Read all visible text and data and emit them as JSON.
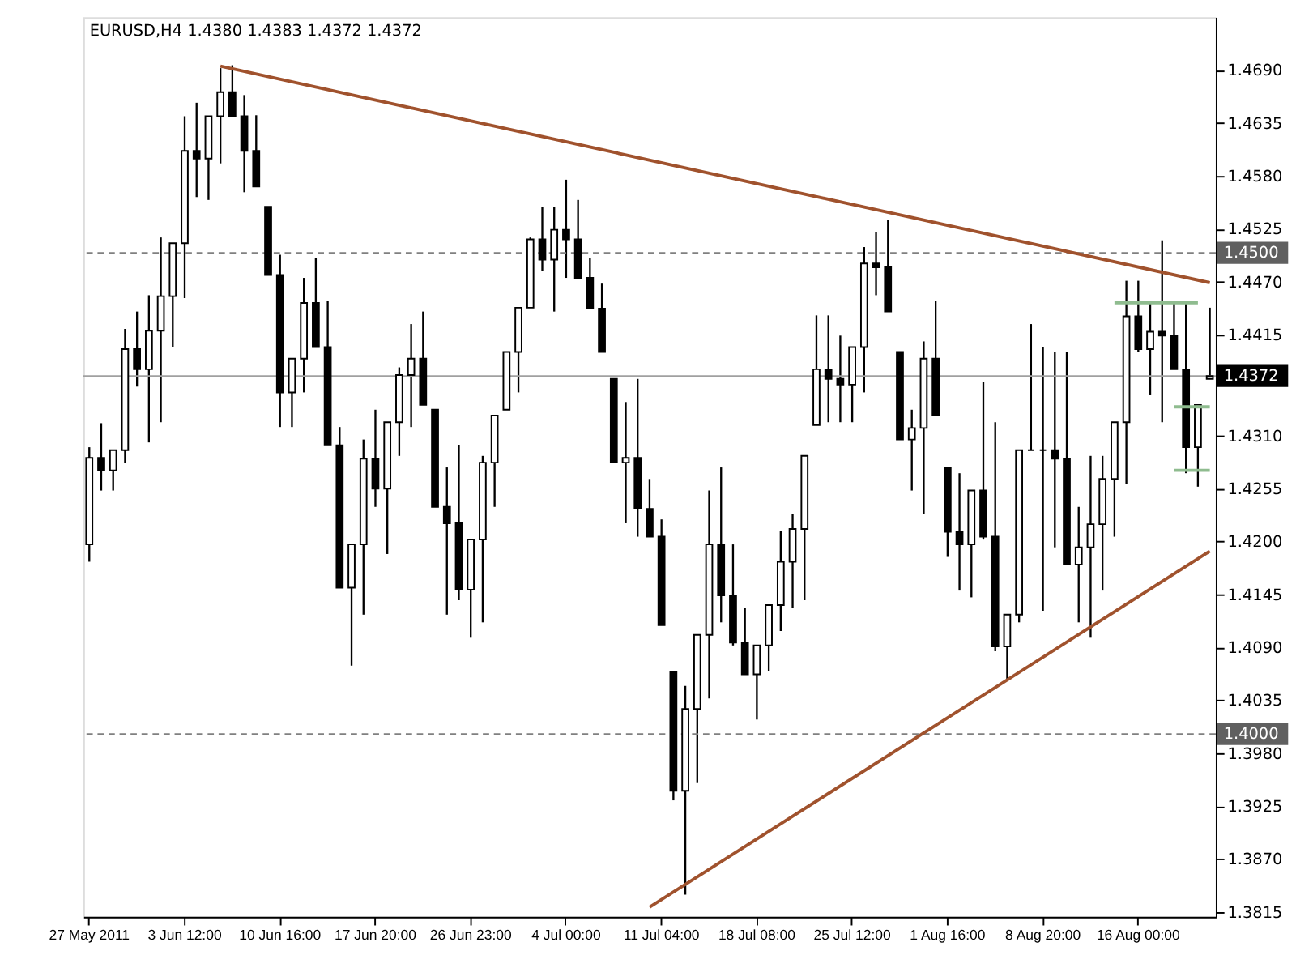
{
  "chart_data": {
    "type": "candlestick",
    "title": "EURUSD,H4  1.4380 1.4383 1.4372 1.4372",
    "color": "#000000",
    "grid": false,
    "categories": [
      "27 May 2011",
      null,
      null,
      null,
      null,
      null,
      null,
      null,
      "3 Jun 12:00",
      null,
      null,
      null,
      null,
      null,
      null,
      null,
      "10 Jun 16:00",
      null,
      null,
      null,
      null,
      null,
      null,
      null,
      "17 Jun 20:00",
      null,
      null,
      null,
      null,
      null,
      null,
      null,
      "26 Jun 23:00",
      null,
      null,
      null,
      null,
      null,
      null,
      null,
      "4 Jul 00:00",
      null,
      null,
      null,
      null,
      null,
      null,
      null,
      "11 Jul 04:00",
      null,
      null,
      null,
      null,
      null,
      null,
      null,
      "18 Jul 08:00",
      null,
      null,
      null,
      null,
      null,
      null,
      null,
      "25 Jul 12:00",
      null,
      null,
      null,
      null,
      null,
      null,
      null,
      "1 Aug 16:00",
      null,
      null,
      null,
      null,
      null,
      null,
      null,
      "8 Aug 20:00",
      null,
      null,
      null,
      null,
      null,
      null,
      null,
      "16 Aug 00:00",
      null,
      null,
      null,
      null,
      null,
      null
    ],
    "ohlc": [
      [
        1.4197,
        1.4298,
        1.4179,
        1.4287
      ],
      [
        1.4287,
        1.4323,
        1.4253,
        1.4274
      ],
      [
        1.4274,
        1.4295,
        1.4253,
        1.4295
      ],
      [
        1.4295,
        1.4421,
        1.4282,
        1.44
      ],
      [
        1.44,
        1.4439,
        1.4361,
        1.4379
      ],
      [
        1.4379,
        1.4456,
        1.4303,
        1.4419
      ],
      [
        1.4419,
        1.4516,
        1.4324,
        1.4455
      ],
      [
        1.4455,
        1.451,
        1.4402,
        1.451
      ],
      [
        1.451,
        1.4642,
        1.4453,
        1.4606
      ],
      [
        1.4606,
        1.4656,
        1.4558,
        1.4598
      ],
      [
        1.4598,
        1.4642,
        1.4555,
        1.4642
      ],
      [
        1.4642,
        1.4692,
        1.4593,
        1.4667
      ],
      [
        1.4667,
        1.4695,
        1.4642,
        1.4642
      ],
      [
        1.4642,
        1.4664,
        1.4563,
        1.4606
      ],
      [
        1.4606,
        1.4643,
        1.4569,
        1.4569
      ],
      [
        1.4548,
        1.4548,
        1.4477,
        1.4477
      ],
      [
        1.4477,
        1.4498,
        1.4319,
        1.4355
      ],
      [
        1.4355,
        1.439,
        1.4319,
        1.439
      ],
      [
        1.439,
        1.4474,
        1.4355,
        1.4448
      ],
      [
        1.4448,
        1.4495,
        1.4402,
        1.4402
      ],
      [
        1.4402,
        1.445,
        1.43,
        1.43
      ],
      [
        1.43,
        1.4319,
        1.4152,
        1.4152
      ],
      [
        1.4152,
        1.4197,
        1.4071,
        1.4197
      ],
      [
        1.4197,
        1.4306,
        1.4124,
        1.4286
      ],
      [
        1.4286,
        1.4337,
        1.4236,
        1.4255
      ],
      [
        1.4255,
        1.4324,
        1.4187,
        1.4324
      ],
      [
        1.4324,
        1.4381,
        1.4289,
        1.4373
      ],
      [
        1.4373,
        1.4426,
        1.4319,
        1.439
      ],
      [
        1.439,
        1.4439,
        1.4342,
        1.4342
      ],
      [
        1.4337,
        1.4337,
        1.4236,
        1.4236
      ],
      [
        1.4236,
        1.4277,
        1.4124,
        1.4219
      ],
      [
        1.4219,
        1.43,
        1.4139,
        1.415
      ],
      [
        1.415,
        1.4202,
        1.41,
        1.4202
      ],
      [
        1.4202,
        1.4289,
        1.4116,
        1.4282
      ],
      [
        1.4282,
        1.4331,
        1.4236,
        1.4331
      ],
      [
        1.4337,
        1.4397,
        1.4337,
        1.4397
      ],
      [
        1.4397,
        1.4443,
        1.4355,
        1.4443
      ],
      [
        1.4443,
        1.4516,
        1.4443,
        1.4514
      ],
      [
        1.4514,
        1.4548,
        1.4481,
        1.4493
      ],
      [
        1.4493,
        1.4548,
        1.4439,
        1.4524
      ],
      [
        1.4524,
        1.4576,
        1.4474,
        1.4514
      ],
      [
        1.4514,
        1.4555,
        1.4474,
        1.4474
      ],
      [
        1.4474,
        1.4495,
        1.4442,
        1.4442
      ],
      [
        1.4442,
        1.4468,
        1.4397,
        1.4397
      ],
      [
        1.4369,
        1.4369,
        1.4282,
        1.4282
      ],
      [
        1.4282,
        1.4345,
        1.4219,
        1.4287
      ],
      [
        1.4287,
        1.4369,
        1.4205,
        1.4234
      ],
      [
        1.4234,
        1.4265,
        1.4205,
        1.4205
      ],
      [
        1.4205,
        1.4223,
        1.4113,
        1.4113
      ],
      [
        1.4065,
        1.4065,
        1.3931,
        1.3941
      ],
      [
        1.3941,
        1.405,
        1.3833,
        1.4026
      ],
      [
        1.4026,
        1.4103,
        1.3949,
        1.4103
      ],
      [
        1.4103,
        1.4253,
        1.4037,
        1.4197
      ],
      [
        1.4197,
        1.4277,
        1.4116,
        1.4144
      ],
      [
        1.4144,
        1.4197,
        1.4092,
        1.4095
      ],
      [
        1.4095,
        1.4131,
        1.4062,
        1.4062
      ],
      [
        1.4062,
        1.4092,
        1.4015,
        1.4092
      ],
      [
        1.4092,
        1.4134,
        1.4065,
        1.4134
      ],
      [
        1.4134,
        1.4211,
        1.4107,
        1.4179
      ],
      [
        1.4179,
        1.4229,
        1.4131,
        1.4213
      ],
      [
        1.4213,
        1.4289,
        1.4139,
        1.4289
      ],
      [
        1.4321,
        1.4435,
        1.4321,
        1.4379
      ],
      [
        1.4379,
        1.4435,
        1.4324,
        1.4369
      ],
      [
        1.4369,
        1.4414,
        1.4324,
        1.4363
      ],
      [
        1.4363,
        1.4402,
        1.4324,
        1.4402
      ],
      [
        1.4402,
        1.4506,
        1.4355,
        1.4489
      ],
      [
        1.4489,
        1.4522,
        1.4456,
        1.4485
      ],
      [
        1.4485,
        1.4534,
        1.4439,
        1.4439
      ],
      [
        1.4397,
        1.4397,
        1.4306,
        1.4306
      ],
      [
        1.4306,
        1.4337,
        1.4253,
        1.4318
      ],
      [
        1.4318,
        1.4408,
        1.4229,
        1.439
      ],
      [
        1.439,
        1.445,
        1.4331,
        1.4331
      ],
      [
        1.4277,
        1.4277,
        1.4184,
        1.421
      ],
      [
        1.421,
        1.4271,
        1.4149,
        1.4197
      ],
      [
        1.4197,
        1.4253,
        1.4142,
        1.4253
      ],
      [
        1.4253,
        1.4366,
        1.4202,
        1.4205
      ],
      [
        1.4205,
        1.4324,
        1.4086,
        1.4091
      ],
      [
        1.4091,
        1.4124,
        1.4057,
        1.4124
      ],
      [
        1.4124,
        1.4295,
        1.4116,
        1.4295
      ],
      [
        1.4295,
        1.4426,
        1.4295,
        1.4295
      ],
      [
        1.4295,
        1.4402,
        1.4128,
        1.4295
      ],
      [
        1.4295,
        1.4397,
        1.4194,
        1.4286
      ],
      [
        1.4286,
        1.4397,
        1.4176,
        1.4176
      ],
      [
        1.4176,
        1.4236,
        1.4116,
        1.4194
      ],
      [
        1.4194,
        1.4289,
        1.41,
        1.4218
      ],
      [
        1.4218,
        1.4289,
        1.4149,
        1.4265
      ],
      [
        1.4265,
        1.4324,
        1.4205,
        1.4324
      ],
      [
        1.4324,
        1.4471,
        1.426,
        1.4434
      ],
      [
        1.4434,
        1.4471,
        1.4397,
        1.44
      ],
      [
        1.44,
        1.445,
        1.4352,
        1.4418
      ],
      [
        1.4418,
        1.4513,
        1.4324,
        1.4414
      ],
      [
        1.4414,
        1.445,
        1.4379,
        1.4379
      ],
      [
        1.4379,
        1.4447,
        1.4271,
        1.4298
      ],
      [
        1.4298,
        1.4342,
        1.4257,
        1.4342
      ],
      [
        1.4369,
        1.4443,
        1.4369,
        1.4372
      ]
    ],
    "series": [
      {
        "type": "line",
        "color": "#a0522d",
        "values": [
          null,
          null,
          null,
          null,
          null,
          null,
          null,
          null,
          null,
          null,
          null,
          1.4694,
          null,
          null,
          null,
          null,
          null,
          null,
          null,
          null,
          null,
          null,
          null,
          null,
          null,
          null,
          null,
          null,
          null,
          null,
          null,
          null,
          null,
          null,
          null,
          null,
          null,
          null,
          null,
          null,
          null,
          null,
          null,
          null,
          null,
          null,
          null,
          null,
          null,
          null,
          null,
          null,
          null,
          null,
          null,
          null,
          null,
          null,
          null,
          null,
          null,
          null,
          null,
          null,
          null,
          null,
          null,
          null,
          null,
          null,
          null,
          null,
          null,
          null,
          null,
          null,
          null,
          null,
          null,
          null,
          null,
          null,
          null,
          null,
          null,
          null,
          null,
          null,
          null,
          null,
          null,
          null,
          null,
          null,
          1.4469
        ]
      },
      {
        "type": "line",
        "color": "#a0522d",
        "values": [
          null,
          null,
          null,
          null,
          null,
          null,
          null,
          null,
          null,
          null,
          null,
          null,
          null,
          null,
          null,
          null,
          null,
          null,
          null,
          null,
          null,
          null,
          null,
          null,
          null,
          null,
          null,
          null,
          null,
          null,
          null,
          null,
          null,
          null,
          null,
          null,
          null,
          null,
          null,
          null,
          null,
          null,
          null,
          null,
          null,
          null,
          null,
          1.382,
          null,
          null,
          null,
          null,
          null,
          null,
          null,
          null,
          null,
          null,
          null,
          null,
          null,
          null,
          null,
          null,
          null,
          null,
          null,
          null,
          null,
          null,
          null,
          null,
          null,
          null,
          null,
          null,
          null,
          null,
          null,
          null,
          null,
          null,
          null,
          null,
          null,
          null,
          null,
          null,
          null,
          null,
          null,
          null,
          null,
          null,
          1.419
        ]
      },
      {
        "type": "line",
        "color": "#8fbc8f",
        "values": [
          null,
          null,
          null,
          null,
          null,
          null,
          null,
          null,
          null,
          null,
          null,
          null,
          null,
          null,
          null,
          null,
          null,
          null,
          null,
          null,
          null,
          null,
          null,
          null,
          null,
          null,
          null,
          null,
          null,
          null,
          null,
          null,
          null,
          null,
          null,
          null,
          null,
          null,
          null,
          null,
          null,
          null,
          null,
          null,
          null,
          null,
          null,
          null,
          null,
          null,
          null,
          null,
          null,
          null,
          null,
          null,
          null,
          null,
          null,
          null,
          null,
          null,
          null,
          null,
          null,
          null,
          null,
          null,
          null,
          null,
          null,
          null,
          null,
          null,
          null,
          null,
          null,
          null,
          null,
          null,
          null,
          null,
          null,
          null,
          null,
          null,
          1.4448,
          null,
          null,
          null,
          null,
          null,
          null,
          1.4448,
          null
        ]
      },
      {
        "type": "line",
        "color": "#8fbc8f",
        "values": [
          null,
          null,
          null,
          null,
          null,
          null,
          null,
          null,
          null,
          null,
          null,
          null,
          null,
          null,
          null,
          null,
          null,
          null,
          null,
          null,
          null,
          null,
          null,
          null,
          null,
          null,
          null,
          null,
          null,
          null,
          null,
          null,
          null,
          null,
          null,
          null,
          null,
          null,
          null,
          null,
          null,
          null,
          null,
          null,
          null,
          null,
          null,
          null,
          null,
          null,
          null,
          null,
          null,
          null,
          null,
          null,
          null,
          null,
          null,
          null,
          null,
          null,
          null,
          null,
          null,
          null,
          null,
          null,
          null,
          null,
          null,
          null,
          null,
          null,
          null,
          null,
          null,
          null,
          null,
          null,
          null,
          null,
          null,
          null,
          null,
          null,
          null,
          null,
          null,
          null,
          null,
          1.434,
          null,
          null,
          1.434
        ]
      },
      {
        "type": "line",
        "color": "#8fbc8f",
        "values": [
          null,
          null,
          null,
          null,
          null,
          null,
          null,
          null,
          null,
          null,
          null,
          null,
          null,
          null,
          null,
          null,
          null,
          null,
          null,
          null,
          null,
          null,
          null,
          null,
          null,
          null,
          null,
          null,
          null,
          null,
          null,
          null,
          null,
          null,
          null,
          null,
          null,
          null,
          null,
          null,
          null,
          null,
          null,
          null,
          null,
          null,
          null,
          null,
          null,
          null,
          null,
          null,
          null,
          null,
          null,
          null,
          null,
          null,
          null,
          null,
          null,
          null,
          null,
          null,
          null,
          null,
          null,
          null,
          null,
          null,
          null,
          null,
          null,
          null,
          null,
          null,
          null,
          null,
          null,
          null,
          null,
          null,
          null,
          null,
          null,
          null,
          null,
          null,
          null,
          null,
          null,
          1.4274,
          null,
          null,
          1.4274
        ]
      }
    ],
    "ref_lines": [
      {
        "axis": "y",
        "value": 1.45,
        "label": "1.4500",
        "color": "#808080",
        "line_style": "dashed"
      },
      {
        "axis": "y",
        "value": 1.4,
        "label": "1.4000",
        "color": "#808080",
        "line_style": "dashed"
      },
      {
        "axis": "y",
        "value": 1.4372,
        "label": "1.4372",
        "color": "#a0a0a0",
        "line_style": "solid"
      }
    ],
    "ylim": [
      1.381,
      1.4745
    ],
    "yticks": [
      {
        "value": 1.469,
        "label": "1.4690"
      },
      1.4635,
      {
        "value": 1.458,
        "label": "1.4580"
      },
      1.4525,
      {
        "value": 1.447,
        "label": "1.4470"
      },
      1.4415,
      {
        "value": 1.4365,
        "label": null
      },
      {
        "value": 1.431,
        "label": "1.4310"
      },
      1.4255,
      {
        "value": 1.42,
        "label": "1.4200"
      },
      1.4145,
      {
        "value": 1.409,
        "label": "1.4090"
      },
      1.4035,
      {
        "value": 1.398,
        "label": "1.3980"
      },
      1.3925,
      {
        "value": 1.387,
        "label": "1.3870"
      },
      1.3815
    ]
  }
}
